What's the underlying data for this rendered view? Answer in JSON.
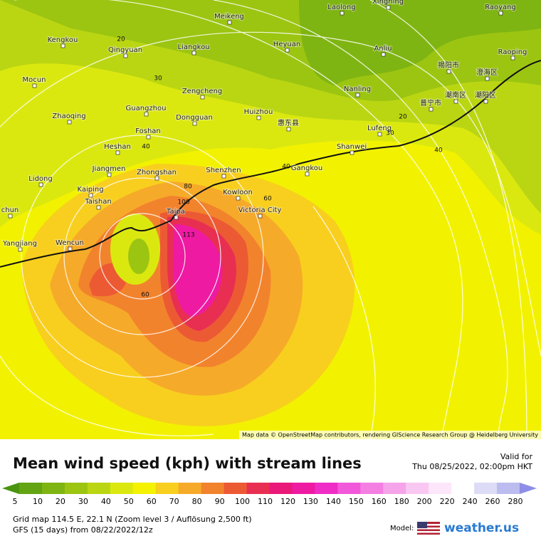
{
  "map": {
    "cities": [
      "Laolong",
      "Xingning",
      "Raoyang",
      "Meikeng",
      "Kengkou",
      "Qingyuan",
      "Liangkou",
      "Heyuan",
      "Anliu",
      "Raoping",
      "揭阳市",
      "澄海区",
      "Mocun",
      "Zengcheng",
      "Nanling",
      "普宁市",
      "潮南区",
      "潮阳区",
      "Guangzhou",
      "Dongguan",
      "Huizhou",
      "Zhaoqing",
      "惠东县",
      "Lufeng",
      "Foshan",
      "Heshan",
      "Shanwei",
      "Jiangmen",
      "Zhongshan",
      "Shenzhen",
      "Gangkou",
      "Lidong",
      "Kaiping",
      "Kowloon",
      "Taishan",
      "chun",
      "Victoria City",
      "Taipa",
      "Yangjiang",
      "Wencun"
    ],
    "contour_labels": [
      "20",
      "30",
      "40",
      "40",
      "40",
      "20",
      "30",
      "60",
      "60",
      "80",
      "100",
      "113"
    ],
    "attribution": "Map data © OpenStreetMap contributors, rendering GIScience Research Group @ Heidelberg University"
  },
  "footer": {
    "title": "Mean wind speed (kph) with stream lines",
    "valid_label": "Valid for",
    "valid_time": "Thu 08/25/2022, 02:00pm HKT",
    "scale_labels": [
      "5",
      "10",
      "20",
      "30",
      "40",
      "50",
      "60",
      "70",
      "80",
      "90",
      "100",
      "110",
      "120",
      "130",
      "140",
      "150",
      "160",
      "180",
      "200",
      "220",
      "240",
      "260",
      "280"
    ],
    "scale_colors": [
      "#4a9410",
      "#63a412",
      "#7fb512",
      "#9cc512",
      "#bad612",
      "#dbe810",
      "#f4f200",
      "#f8cf1e",
      "#f6aa2a",
      "#f2832d",
      "#ec5a34",
      "#e82f52",
      "#ea1878",
      "#ee1aa2",
      "#f02cc6",
      "#f258da",
      "#f47ee2",
      "#f6a4ea",
      "#f9c8f2",
      "#fce6fa",
      "#ffffff",
      "#dcdcf6",
      "#bcbcf0",
      "#8e8ee8"
    ],
    "grid_info": "Grid map 114.5 E, 22.1 N (Zoom level 3 / Auflösung 2,500 ft)",
    "model_run": "GFS (15 days) from  08/22/2022/12z",
    "model_label": "Model:",
    "brand": "weather.us"
  }
}
